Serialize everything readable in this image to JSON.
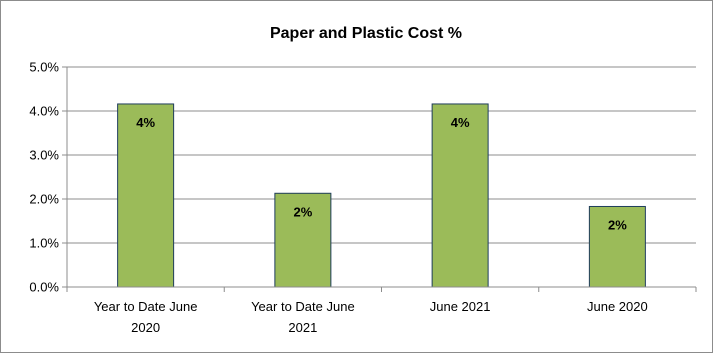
{
  "chart_data": {
    "type": "bar",
    "title": "Paper and Plastic Cost  %",
    "categories": [
      [
        "Year to Date June",
        "2020"
      ],
      [
        "Year to Date June",
        "2021"
      ],
      [
        "June 2021"
      ],
      [
        "June 2020"
      ]
    ],
    "values": [
      0.0416,
      0.0213,
      0.0416,
      0.0183
    ],
    "data_labels": [
      "4%",
      "2%",
      "4%",
      "2%"
    ],
    "y_ticks": [
      "0.0%",
      "1.0%",
      "2.0%",
      "3.0%",
      "4.0%",
      "5.0%"
    ],
    "ylim": [
      0,
      0.05
    ],
    "grid": true,
    "legend": "none",
    "colors": {
      "bar_fill": "#9bbb59",
      "bar_stroke": "#1f3d5c",
      "grid": "#8c8c8c"
    }
  }
}
